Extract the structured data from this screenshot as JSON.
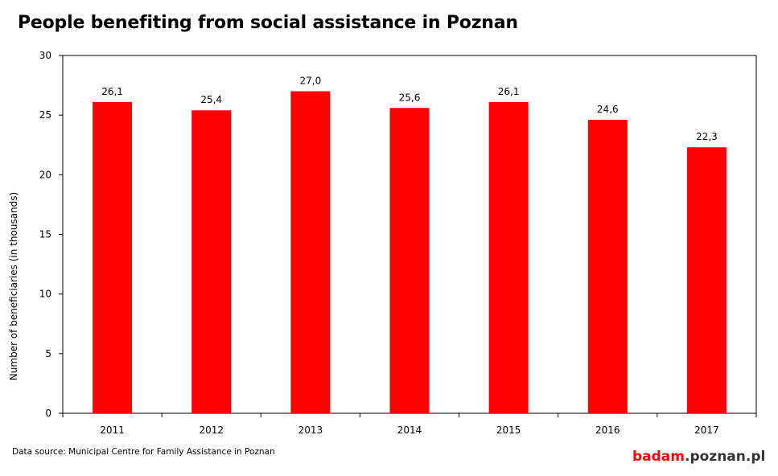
{
  "header": {
    "title": "People benefiting from social assistance in Poznan"
  },
  "footer": {
    "source": "Data source: Municipal Centre for Family Assistance in Poznan",
    "logo_brand": "badam",
    "logo_domain": ".poznan.pl"
  },
  "colors": {
    "bar": "#ff0000",
    "axis": "#000000",
    "brand": "#ff0000"
  },
  "chart_data": {
    "type": "bar",
    "categories": [
      "2011",
      "2012",
      "2013",
      "2014",
      "2015",
      "2016",
      "2017"
    ],
    "values": [
      26.1,
      25.4,
      27.0,
      25.6,
      26.1,
      24.6,
      22.3
    ],
    "value_labels": [
      "26,1",
      "25,4",
      "27,0",
      "25,6",
      "26,1",
      "24,6",
      "22,3"
    ],
    "title": "People benefiting from social assistance in Poznan",
    "xlabel": "",
    "ylabel": "Number of beneficiaries  (in thousands)",
    "ylim": [
      0,
      30
    ],
    "yticks": [
      0,
      5,
      10,
      15,
      20,
      25,
      30
    ],
    "grid": false,
    "legend": "none"
  }
}
